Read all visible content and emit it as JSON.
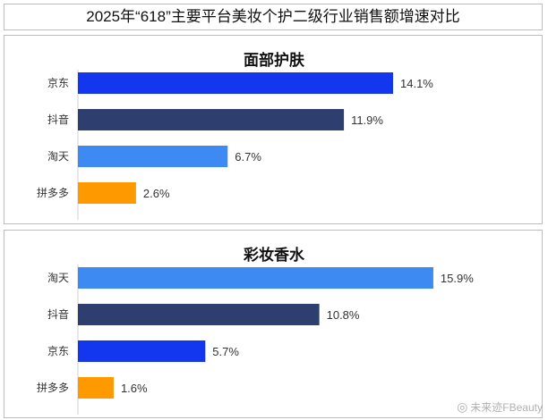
{
  "title": "2025年“618”主要平台美妆个护二级行业销售额增速对比",
  "watermark": "未来迹FBeauty",
  "colors": {
    "京东": "#1337EE",
    "抖音": "#2E3E6E",
    "淘天": "#3D8BF2",
    "拼多多": "#FF9900"
  },
  "chart_data": [
    {
      "type": "bar",
      "orientation": "horizontal",
      "title": "面部护肤",
      "categories": [
        "京东",
        "抖音",
        "淘天",
        "拼多多"
      ],
      "values": [
        14.1,
        11.9,
        6.7,
        2.6
      ],
      "value_labels": [
        "14.1%",
        "11.9%",
        "6.7%",
        "2.6%"
      ],
      "unit": "%",
      "xlim": [
        0,
        16
      ],
      "grid": false,
      "legend": "none"
    },
    {
      "type": "bar",
      "orientation": "horizontal",
      "title": "彩妆香水",
      "categories": [
        "淘天",
        "抖音",
        "京东",
        "拼多多"
      ],
      "values": [
        15.9,
        10.8,
        5.7,
        1.6
      ],
      "value_labels": [
        "15.9%",
        "10.8%",
        "5.7%",
        "1.6%"
      ],
      "unit": "%",
      "xlim": [
        0,
        16
      ],
      "grid": false,
      "legend": "none"
    }
  ]
}
